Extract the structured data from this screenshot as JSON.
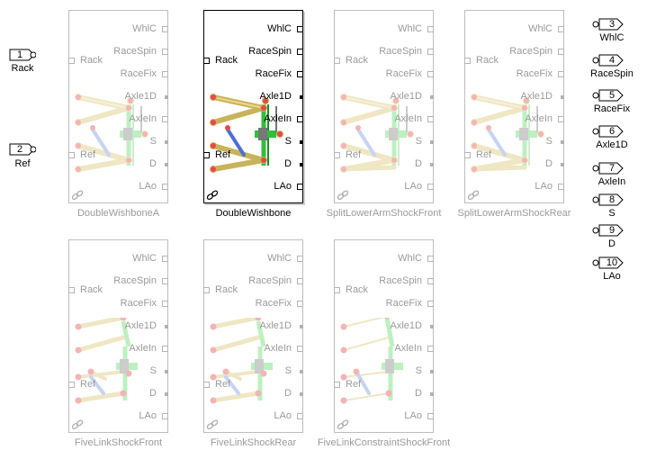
{
  "inports": [
    {
      "num": "1",
      "label": "Rack"
    },
    {
      "num": "2",
      "label": "Ref"
    }
  ],
  "outports": [
    {
      "num": "3",
      "label": "WhlC"
    },
    {
      "num": "4",
      "label": "RaceSpin"
    },
    {
      "num": "5",
      "label": "RaceFix"
    },
    {
      "num": "6",
      "label": "Axle1D"
    },
    {
      "num": "7",
      "label": "AxleIn"
    },
    {
      "num": "8",
      "label": "S"
    },
    {
      "num": "9",
      "label": "D"
    },
    {
      "num": "10",
      "label": "LAo"
    }
  ],
  "blocks": [
    {
      "name": "DoubleWishboneA",
      "active": false
    },
    {
      "name": "DoubleWishbone",
      "active": true
    },
    {
      "name": "SplitLowerArmShockFront",
      "active": false
    },
    {
      "name": "SplitLowerArmShockRear",
      "active": false
    },
    {
      "name": "FiveLinkShockFront",
      "active": false
    },
    {
      "name": "FiveLinkShockRear",
      "active": false
    },
    {
      "name": "FiveLinkConstraintShockFront",
      "active": false
    }
  ],
  "block_ports": {
    "right": [
      "WhlC",
      "RaceSpin",
      "RaceFix",
      "Axle1D",
      "AxleIn",
      "S",
      "D",
      "LAo"
    ],
    "left": [
      "Rack",
      "Ref"
    ]
  },
  "colors": {
    "active_border": "#000000",
    "inactive_border": "#bdbdbd",
    "inactive_text": "#9a9a9a",
    "arm": "#c9b35a",
    "arm_faded": "#efe6c4",
    "shock": "#2fbf3a",
    "shock_faded": "#bdf0c0",
    "joint": "#e24a4a",
    "joint_faded": "#f3b4b4"
  }
}
